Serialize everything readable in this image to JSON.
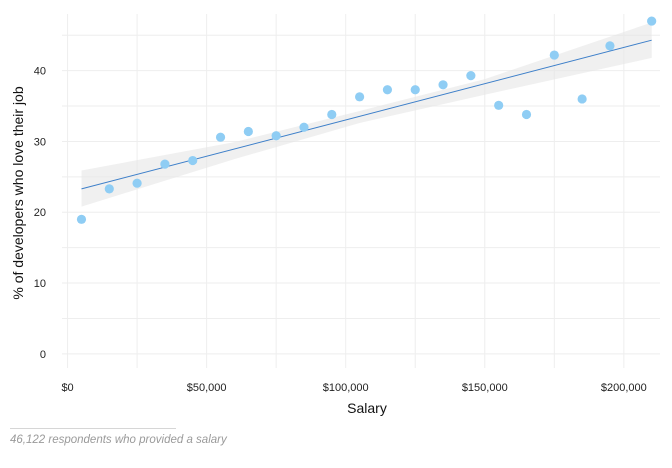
{
  "chart_data": {
    "type": "scatter",
    "xlabel": "Salary",
    "ylabel": "% of developers who love their job",
    "xlim": [
      -2000,
      213000
    ],
    "ylim": [
      -2,
      48
    ],
    "x_ticks": [
      0,
      50000,
      100000,
      150000,
      200000
    ],
    "x_tick_labels": [
      "$0",
      "$50,000",
      "$100,000",
      "$150,000",
      "$200,000"
    ],
    "y_ticks": [
      0,
      10,
      20,
      30,
      40
    ],
    "y_tick_labels": [
      "0",
      "10",
      "20",
      "30",
      "40"
    ],
    "grid": true,
    "point_color": "#8fcdf4",
    "line_color": "#3d7fc9",
    "band_color": "#e6e6e6",
    "points": [
      {
        "x": 5000,
        "y": 19.0
      },
      {
        "x": 15000,
        "y": 23.3
      },
      {
        "x": 25000,
        "y": 24.1
      },
      {
        "x": 35000,
        "y": 26.8
      },
      {
        "x": 45000,
        "y": 27.3
      },
      {
        "x": 55000,
        "y": 30.6
      },
      {
        "x": 65000,
        "y": 31.4
      },
      {
        "x": 75000,
        "y": 30.8
      },
      {
        "x": 85000,
        "y": 32.0
      },
      {
        "x": 95000,
        "y": 33.8
      },
      {
        "x": 105000,
        "y": 36.3
      },
      {
        "x": 115000,
        "y": 37.3
      },
      {
        "x": 125000,
        "y": 37.3
      },
      {
        "x": 135000,
        "y": 38.0
      },
      {
        "x": 145000,
        "y": 39.3
      },
      {
        "x": 155000,
        "y": 35.1
      },
      {
        "x": 165000,
        "y": 33.8
      },
      {
        "x": 175000,
        "y": 42.2
      },
      {
        "x": 185000,
        "y": 36.0
      },
      {
        "x": 195000,
        "y": 43.5
      },
      {
        "x": 210000,
        "y": 47.0
      }
    ],
    "trend": {
      "x": [
        5000,
        210000
      ],
      "y": [
        23.3,
        44.3
      ]
    },
    "confidence_band": {
      "x": [
        5000,
        60000,
        105000,
        150000,
        210000
      ],
      "upper": [
        25.9,
        29.9,
        34.3,
        38.8,
        46.8
      ],
      "lower": [
        20.8,
        27.5,
        32.6,
        36.6,
        41.8
      ]
    }
  },
  "footnote": "46,122 respondents who provided a salary"
}
